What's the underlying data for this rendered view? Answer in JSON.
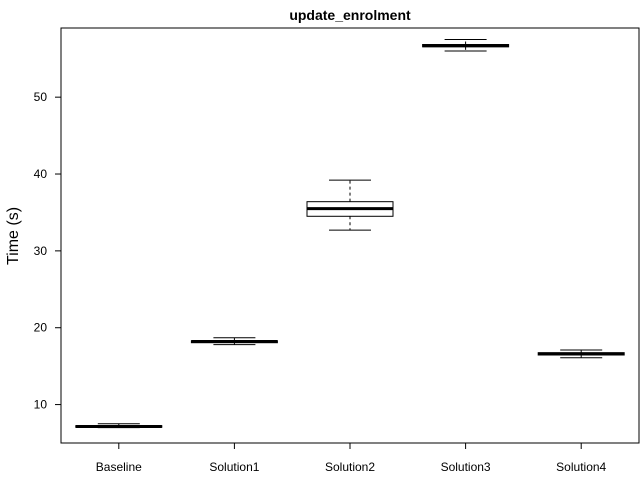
{
  "chart_data": {
    "type": "boxplot",
    "title": "update_enrolment",
    "xlabel": "",
    "ylabel": "Time (s)",
    "ylim": [
      5,
      59
    ],
    "yticks": [
      10,
      20,
      30,
      40,
      50
    ],
    "grid": false,
    "categories": [
      "Baseline",
      "Solution1",
      "Solution2",
      "Solution3",
      "Solution4"
    ],
    "boxes": [
      {
        "min": 7.0,
        "q1": 7.05,
        "median": 7.15,
        "q3": 7.25,
        "max": 7.5
      },
      {
        "min": 17.8,
        "q1": 18.05,
        "median": 18.2,
        "q3": 18.3,
        "max": 18.7
      },
      {
        "min": 32.7,
        "q1": 34.5,
        "median": 35.5,
        "q3": 36.4,
        "max": 39.2
      },
      {
        "min": 56.0,
        "q1": 56.55,
        "median": 56.7,
        "q3": 56.85,
        "max": 57.5
      },
      {
        "min": 16.1,
        "q1": 16.45,
        "median": 16.6,
        "q3": 16.75,
        "max": 17.1
      }
    ]
  }
}
